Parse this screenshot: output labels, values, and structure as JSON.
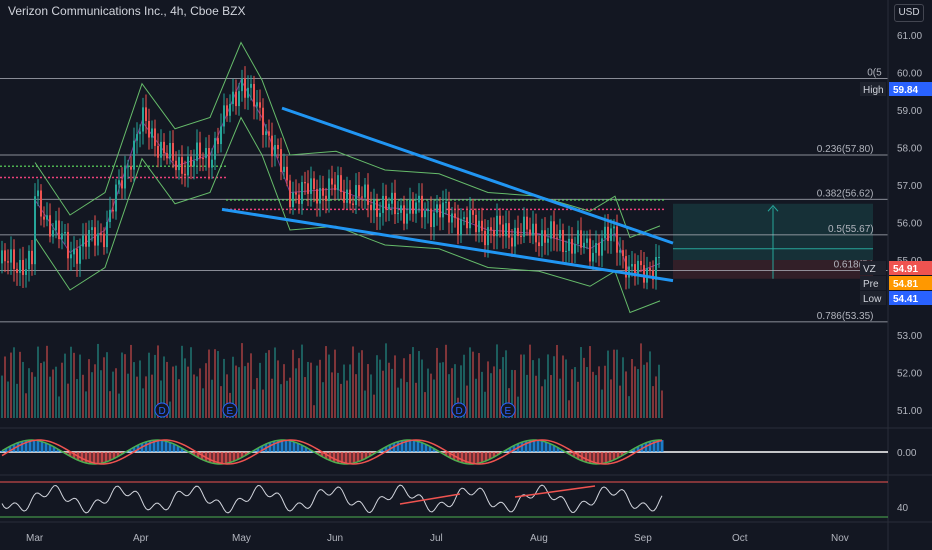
{
  "header": {
    "title": "Verizon Communications Inc., 4h, Cboe BZX",
    "currency": "USD"
  },
  "colors": {
    "background": "#131722",
    "up": "#26a69a",
    "down": "#ef5350",
    "channel": "#2196f3",
    "fib_line": "#b2b5be",
    "bollinger": "#66bb6a",
    "volume_up": "#26a69a",
    "volume_down": "#ef5350"
  },
  "chart_data": [
    {
      "type": "candlestick",
      "title": "Verizon Communications Inc., 4h, Cboe BZX",
      "x_ticks": [
        "Mar",
        "Apr",
        "May",
        "Jun",
        "Jul",
        "Aug",
        "Sep",
        "Oct",
        "Nov"
      ],
      "y_ticks": [
        61.0,
        60.0,
        59.0,
        58.0,
        57.0,
        56.0,
        55.0,
        54.0,
        53.0,
        52.0,
        51.0
      ],
      "ylim": [
        50.6,
        61.4
      ],
      "close_series": [
        {
          "date": "Mar",
          "value": 56.6
        },
        {
          "date": "mid-Mar",
          "value": 55.2
        },
        {
          "date": "late-Mar",
          "value": 55.8
        },
        {
          "date": "Apr",
          "value": 58.7
        },
        {
          "date": "mid-Apr",
          "value": 57.5
        },
        {
          "date": "late-Apr",
          "value": 57.8
        },
        {
          "date": "May",
          "value": 59.8
        },
        {
          "date": "early-May",
          "value": 58.8
        },
        {
          "date": "mid-May",
          "value": 56.8
        },
        {
          "date": "Jun",
          "value": 56.9
        },
        {
          "date": "mid-Jun",
          "value": 56.4
        },
        {
          "date": "Jul",
          "value": 56.3
        },
        {
          "date": "mid-Jul",
          "value": 55.8
        },
        {
          "date": "Aug",
          "value": 55.7
        },
        {
          "date": "mid-Aug",
          "value": 55.3
        },
        {
          "date": "late-Aug",
          "value": 55.7
        },
        {
          "date": "early-Sep",
          "value": 54.6
        },
        {
          "date": "Sep",
          "value": 54.91
        }
      ],
      "fibonacci_levels": [
        {
          "label": "0(5",
          "price": 59.84
        },
        {
          "label": "0.236(57.80)",
          "price": 57.8
        },
        {
          "label": "0.382(56.62)",
          "price": 56.62
        },
        {
          "label": "0.5(55.67)",
          "price": 55.67
        },
        {
          "label": "0.618(54.",
          "price": 54.72
        },
        {
          "label": "0.786(53.35)",
          "price": 53.35
        }
      ],
      "price_tags": [
        {
          "label": "High",
          "value": "59.84"
        },
        {
          "label": "VZ",
          "value": "54.91"
        },
        {
          "label": "Pre",
          "value": "54.81"
        },
        {
          "label": "Low",
          "value": "54.41"
        }
      ],
      "annotations": [
        {
          "text": "D",
          "date": "Apr"
        },
        {
          "text": "E",
          "date": "late-Apr"
        },
        {
          "text": "D",
          "date": "Jul"
        },
        {
          "text": "E",
          "date": "mid-Jul"
        }
      ]
    },
    {
      "type": "line",
      "name": "oscillator",
      "y_ticks": [
        "0.00"
      ]
    },
    {
      "type": "line",
      "name": "rsi",
      "y_ticks": [
        "40"
      ]
    }
  ]
}
